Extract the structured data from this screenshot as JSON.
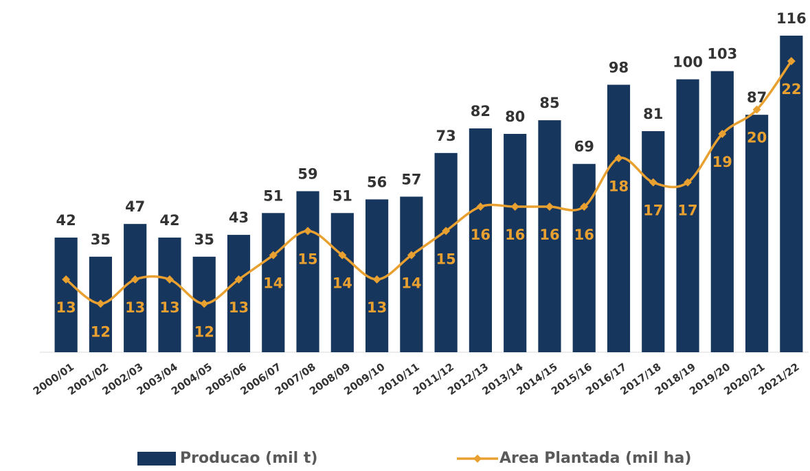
{
  "chart_data": {
    "type": "bar-line",
    "categories": [
      "2000/01",
      "2001/02",
      "2002/03",
      "2003/04",
      "2004/05",
      "2005/06",
      "2006/07",
      "2007/08",
      "2008/09",
      "2009/10",
      "2010/11",
      "2011/12",
      "2012/13",
      "2013/14",
      "2014/15",
      "2015/16",
      "2016/17",
      "2017/18",
      "2018/19",
      "2019/20",
      "2020/21",
      "2021/22"
    ],
    "series": [
      {
        "name": "Producao (mil t)",
        "type": "bar",
        "color": "#17365d",
        "values": [
          42,
          35,
          47,
          42,
          35,
          43,
          51,
          59,
          51,
          56,
          57,
          73,
          82,
          80,
          85,
          69,
          98,
          81,
          100,
          103,
          87,
          116
        ]
      },
      {
        "name": "Area Plantada (mil ha)",
        "type": "line",
        "axis": "y2",
        "color": "#e8a030",
        "values": [
          13,
          12,
          13,
          13,
          12,
          13,
          14,
          15,
          14,
          13,
          14,
          15,
          16,
          16,
          16,
          16,
          18,
          17,
          17,
          19,
          20,
          22
        ]
      }
    ],
    "ylim": [
      0,
      120
    ],
    "y2lim": [
      10,
      23.5
    ],
    "legend": "bottom"
  }
}
